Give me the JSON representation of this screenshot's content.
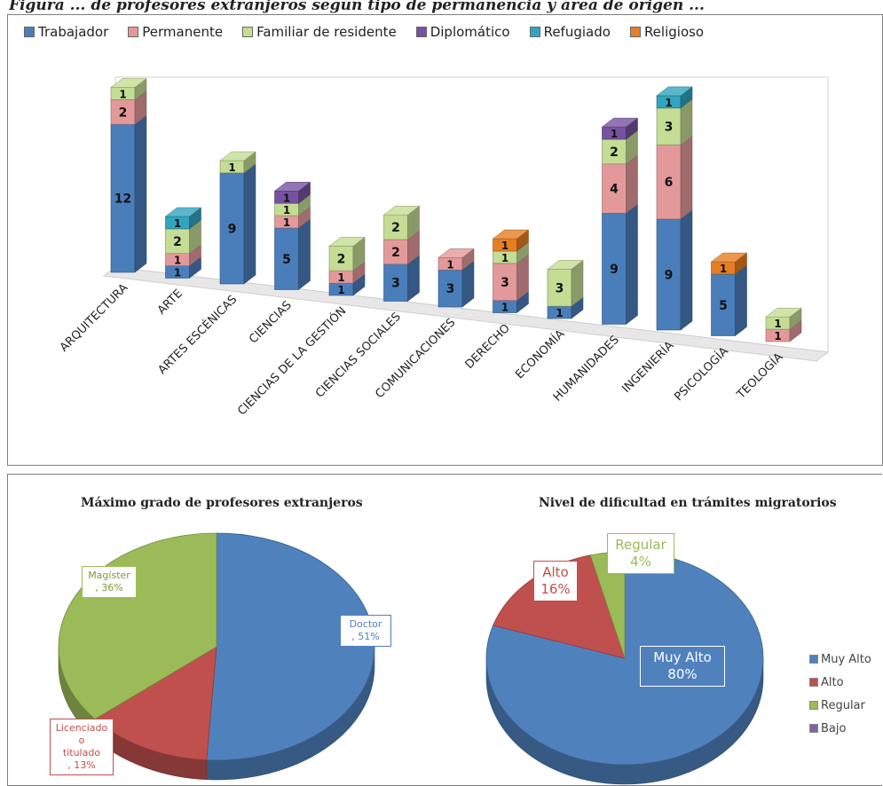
{
  "page_title": "Figura ... de profesores extranjeros según tipo de permanencia y área de origen ...",
  "chart_data": [
    {
      "type": "bar",
      "stacked": true,
      "three_d": true,
      "legend_position": "top",
      "categories": [
        "ARQUITECTURA",
        "ARTE",
        "ARTES ESCÉNICAS",
        "CIENCIAS",
        "CIENCIAS DE LA GESTIÓN",
        "CIENCIAS SOCIALES",
        "COMUNICACIONES",
        "DERECHO",
        "ECONOMÍA",
        "HUMANIDADES",
        "INGENIERÍA",
        "PSICOLOGÍA",
        "TEOLOGÍA"
      ],
      "series": [
        {
          "name": "Trabajador",
          "color": "#4a7ebb",
          "values": [
            12,
            1,
            9,
            5,
            1,
            3,
            3,
            1,
            1,
            9,
            9,
            5,
            0
          ]
        },
        {
          "name": "Permanente",
          "color": "#e3999a",
          "values": [
            2,
            1,
            0,
            1,
            1,
            2,
            1,
            3,
            0,
            4,
            6,
            0,
            1
          ]
        },
        {
          "name": "Familiar de residente",
          "color": "#c4dc94",
          "values": [
            1,
            2,
            1,
            1,
            2,
            2,
            0,
            1,
            3,
            2,
            3,
            0,
            1
          ]
        },
        {
          "name": "Diplomático",
          "color": "#7752a0",
          "values": [
            0,
            0,
            0,
            1,
            0,
            0,
            0,
            0,
            0,
            1,
            0,
            0,
            0
          ]
        },
        {
          "name": "Refugiado",
          "color": "#31a5bf",
          "values": [
            0,
            1,
            0,
            0,
            0,
            0,
            0,
            0,
            0,
            0,
            1,
            0,
            0
          ]
        },
        {
          "name": "Religioso",
          "color": "#e67e22",
          "values": [
            0,
            0,
            0,
            0,
            0,
            0,
            0,
            1,
            0,
            0,
            0,
            1,
            0
          ]
        }
      ]
    },
    {
      "type": "pie",
      "three_d": true,
      "title": "Máximo grado de profesores extranjeros",
      "slices": [
        {
          "label": "Doctor",
          "value": 51,
          "text": "Doctor\n, 51%",
          "color": "#4f81bd"
        },
        {
          "label": "Licenciado o titulado",
          "value": 13,
          "text": "Licenciado o\ntitulado\n, 13%",
          "color": "#c0504d"
        },
        {
          "label": "Magíster",
          "value": 36,
          "text": "Magíster\n, 36%",
          "color": "#9bbb59"
        }
      ]
    },
    {
      "type": "pie",
      "three_d": true,
      "title": "Nivel de dificultad en trámites migratorios",
      "legend_position": "right",
      "slices": [
        {
          "label": "Muy Alto",
          "value": 80,
          "text": "Muy Alto\n80%",
          "color": "#4f81bd"
        },
        {
          "label": "Alto",
          "value": 16,
          "text": "Alto\n16%",
          "color": "#c0504d"
        },
        {
          "label": "Regular",
          "value": 4,
          "text": "Regular\n4%",
          "color": "#9bbb59"
        },
        {
          "label": "Bajo",
          "value": 0,
          "color": "#8064a2"
        }
      ]
    }
  ]
}
